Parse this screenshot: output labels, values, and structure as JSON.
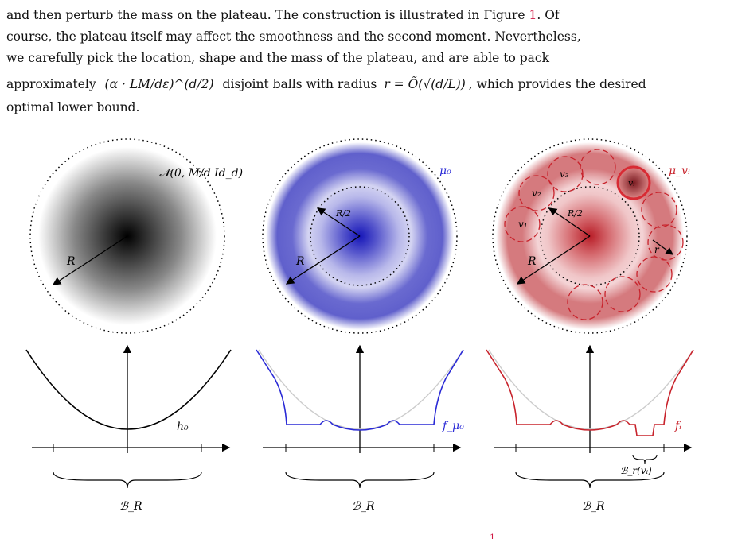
{
  "paragraph": {
    "line1": "and then perturb the mass on the plateau. The construction is illustrated in Figure",
    "fig_ref": "1",
    "line1_end": ". Of",
    "line2": "course, the plateau itself may affect the smoothness and the second moment. Nevertheless,",
    "line3": "we carefully pick the location, shape and the mass of the plateau, and are able to pack",
    "line4_a": "approximately",
    "line4_b": "disjoint balls with radius",
    "line4_c": ", which provides the desired",
    "line5": "optimal lower bound."
  },
  "math": {
    "count_expr": "(α · LM/dε)^(d/2)",
    "radius_expr": "r = Õ(√(d/L))"
  },
  "figure": {
    "panel1": {
      "dist_label": "𝒩(0, M/d Id_d)",
      "radius": "R",
      "func": "h₀",
      "ball": "ℬ_R"
    },
    "panel2": {
      "dist_label": "μ₀",
      "radius": "R",
      "half_radius": "R/2",
      "func": "f_μ₀",
      "ball": "ℬ_R"
    },
    "panel3": {
      "dist_label": "μ_vᵢ",
      "radius": "R",
      "half_radius": "R/2",
      "func": "fᵢ",
      "ball": "ℬ_R",
      "small_ball": "ℬ_r(vᵢ)",
      "small_r": "r",
      "centers": [
        "v₁",
        "v₂",
        "v₃",
        "vᵢ"
      ]
    },
    "caption_partial": "1"
  },
  "colors": {
    "ref": "#d01a45",
    "blue": "#2a2ad6",
    "red": "#c8232c",
    "gray": "#cccccc"
  }
}
